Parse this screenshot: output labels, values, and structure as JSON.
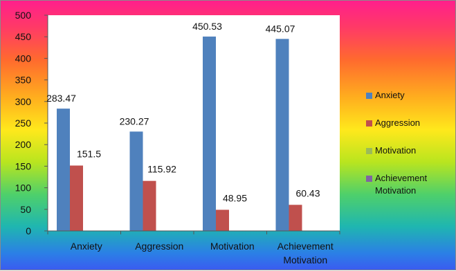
{
  "chart_data": {
    "type": "bar",
    "categories": [
      "Anxiety",
      "Aggression",
      "Motivation",
      "Achievement Motivation"
    ],
    "category_lines": [
      [
        "Anxiety"
      ],
      [
        "Aggression"
      ],
      [
        "Motivation"
      ],
      [
        "Achievement",
        "Motivation"
      ]
    ],
    "series": [
      {
        "name": "Anxiety",
        "color": "#4f81bd",
        "values": [
          283.47,
          230.27,
          450.53,
          445.07
        ],
        "labels": [
          "283.47",
          "230.27",
          "450.53",
          "445.07"
        ]
      },
      {
        "name": "Aggression",
        "color": "#c0504d",
        "values": [
          151.5,
          115.92,
          48.95,
          60.43
        ],
        "labels": [
          "151.5",
          "115.92",
          "48.95",
          "60.43"
        ]
      },
      {
        "name": "Motivation",
        "color": "#9bbb59",
        "values": [
          0,
          0,
          0,
          0
        ],
        "labels": []
      },
      {
        "name": "Achievement Motivation",
        "color": "#8064a2",
        "values": [
          0,
          0,
          0,
          0
        ],
        "labels": []
      }
    ],
    "legend_lines": [
      [
        "Anxiety"
      ],
      [
        "Aggression"
      ],
      [
        "Motivation"
      ],
      [
        "Achievement",
        "Motivation"
      ]
    ],
    "ylim": [
      0,
      500
    ],
    "yticks": [
      0,
      50,
      100,
      150,
      200,
      250,
      300,
      350,
      400,
      450,
      500
    ],
    "title": "",
    "xlabel": "",
    "ylabel": "",
    "legend_position": "right",
    "grid": false
  }
}
